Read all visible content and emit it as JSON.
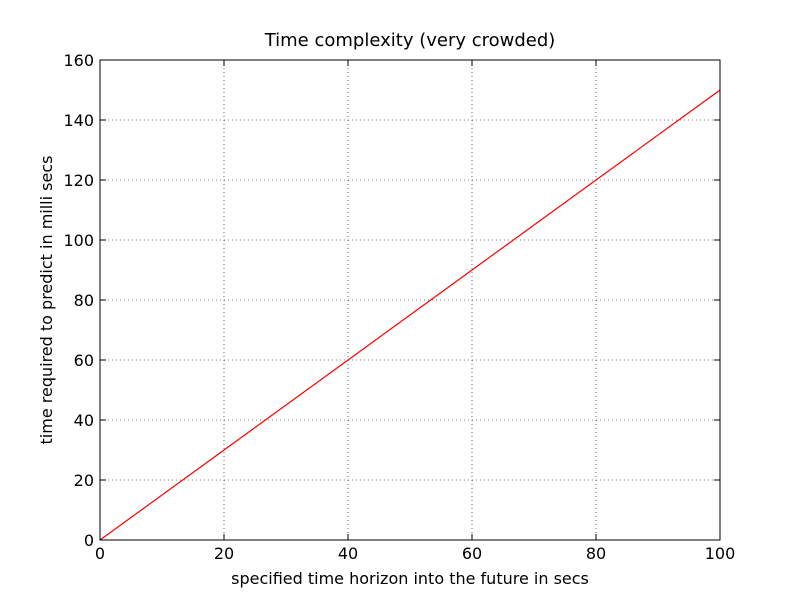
{
  "chart_data": {
    "type": "line",
    "title": "Time complexity (very crowded)",
    "x_label": "specified time horizon into the future in secs",
    "y_label": "time required to predict in milli secs",
    "x": [
      0,
      20,
      40,
      60,
      80,
      100
    ],
    "series": [
      {
        "color": "#ff0000",
        "values": [
          0,
          30,
          60,
          90,
          120,
          150
        ]
      }
    ],
    "xlim": [
      0,
      100
    ],
    "xticks": [
      0,
      20,
      40,
      60,
      80,
      100
    ],
    "ylim": [
      0,
      160
    ],
    "yticks": [
      0,
      20,
      40,
      60,
      80,
      100,
      120,
      140,
      160
    ],
    "grid": true
  }
}
